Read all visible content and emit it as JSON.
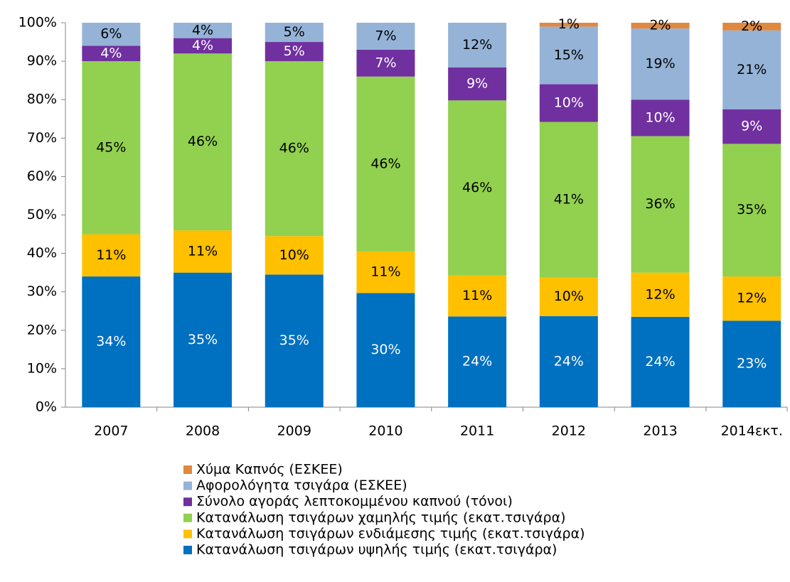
{
  "chart_data": {
    "type": "stacked_bar",
    "categories": [
      "2007",
      "2008",
      "2009",
      "2010",
      "2011",
      "2012",
      "2013",
      "2014εκτ."
    ],
    "ylim": [
      0,
      100
    ],
    "yticks": [
      {
        "value": 0,
        "label": "0%"
      },
      {
        "value": 10,
        "label": "10%"
      },
      {
        "value": 20,
        "label": "20%"
      },
      {
        "value": 30,
        "label": "30%"
      },
      {
        "value": 40,
        "label": "40%"
      },
      {
        "value": 50,
        "label": "50%"
      },
      {
        "value": 60,
        "label": "60%"
      },
      {
        "value": 70,
        "label": "70%"
      },
      {
        "value": 80,
        "label": "80%"
      },
      {
        "value": 90,
        "label": "90%"
      },
      {
        "value": 100,
        "label": "100%"
      }
    ],
    "grid": false,
    "legend": "bottom",
    "series": [
      {
        "name": "Κατανάλωση τσιγάρων υψηλής τιμής (εκατ.τσιγάρα)",
        "color": "#0070c0",
        "label_color": "#ffffff",
        "values": [
          34,
          35,
          34.5,
          29.7,
          23.6,
          23.7,
          23.5,
          22.5
        ],
        "value_labels": [
          "34%",
          "35%",
          "35%",
          "30%",
          "24%",
          "24%",
          "24%",
          "23%"
        ]
      },
      {
        "name": "Κατανάλωση τσιγάρων ενδιάμεσης τιμής (εκατ.τσιγάρα)",
        "color": "#ffc000",
        "label_color": "#000000",
        "values": [
          11,
          11,
          10,
          10.8,
          10.7,
          10,
          11.5,
          11.5
        ],
        "value_labels": [
          "11%",
          "11%",
          "10%",
          "11%",
          "11%",
          "10%",
          "12%",
          "12%"
        ]
      },
      {
        "name": "Κατανάλωση τσιγάρων χαμηλής τιμής (εκατ.τσιγάρα)",
        "color": "#92d050",
        "label_color": "#000000",
        "values": [
          45,
          46,
          45.5,
          45.5,
          45.5,
          40.5,
          35.5,
          34.5
        ],
        "value_labels": [
          "45%",
          "46%",
          "46%",
          "46%",
          "46%",
          "41%",
          "36%",
          "35%"
        ]
      },
      {
        "name": "Σύνολο αγοράς λεπτοκομμένου καπνού (τόνοι)",
        "color": "#7030a0",
        "label_color": "#ffffff",
        "values": [
          4,
          4,
          5,
          7,
          8.6,
          9.8,
          9.5,
          9
        ],
        "value_labels": [
          "4%",
          "4%",
          "5%",
          "7%",
          "9%",
          "10%",
          "10%",
          "9%"
        ]
      },
      {
        "name": "Αφορολόγητα τσιγάρα (ΕΣΚΕΕ)",
        "color": "#95b3d7",
        "label_color": "#000000",
        "values": [
          6,
          4,
          5,
          7,
          11.6,
          15,
          18.5,
          20.5
        ],
        "value_labels": [
          "6%",
          "4%",
          "5%",
          "7%",
          "12%",
          "15%",
          "19%",
          "21%"
        ]
      },
      {
        "name": "Χύμα Καπνός (ΕΣΚΕΕ)",
        "color": "#e0883f",
        "label_color": "#000000",
        "values": [
          null,
          null,
          null,
          null,
          null,
          1,
          1.5,
          2
        ],
        "value_labels": [
          null,
          null,
          null,
          null,
          null,
          "1%",
          "2%",
          "2%"
        ]
      }
    ]
  }
}
